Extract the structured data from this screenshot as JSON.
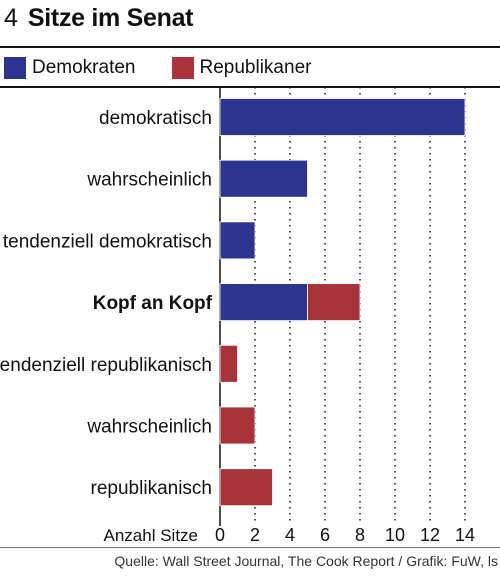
{
  "header": {
    "number": "4",
    "title": "Sitze im Senat"
  },
  "legend": [
    {
      "label": "Demokraten",
      "color": "#2b3590"
    },
    {
      "label": "Republikaner",
      "color": "#a8333a"
    }
  ],
  "source": "Quelle: Wall Street Journal, The Cook Report / Grafik: FuW, ls",
  "chart_data": {
    "type": "bar",
    "orientation": "horizontal",
    "stacked": true,
    "categories": [
      "demokratisch",
      "wahrscheinlich",
      "tendenziell demokratisch",
      "Kopf an Kopf",
      "tendenziell republikanisch",
      "wahrscheinlich",
      "republikanisch"
    ],
    "bold_categories": [
      "Kopf an Kopf"
    ],
    "series": [
      {
        "name": "Demokraten",
        "color": "#2b3590",
        "values": [
          14,
          5,
          2,
          5,
          0,
          0,
          0
        ]
      },
      {
        "name": "Republikaner",
        "color": "#a8333a",
        "values": [
          0,
          0,
          0,
          3,
          1,
          2,
          3
        ]
      }
    ],
    "xlabel": "Anzahl Sitze",
    "xlim": [
      0,
      14
    ],
    "xticks": [
      0,
      2,
      4,
      6,
      8,
      10,
      12,
      14
    ],
    "grid": "vertical-dotted"
  }
}
